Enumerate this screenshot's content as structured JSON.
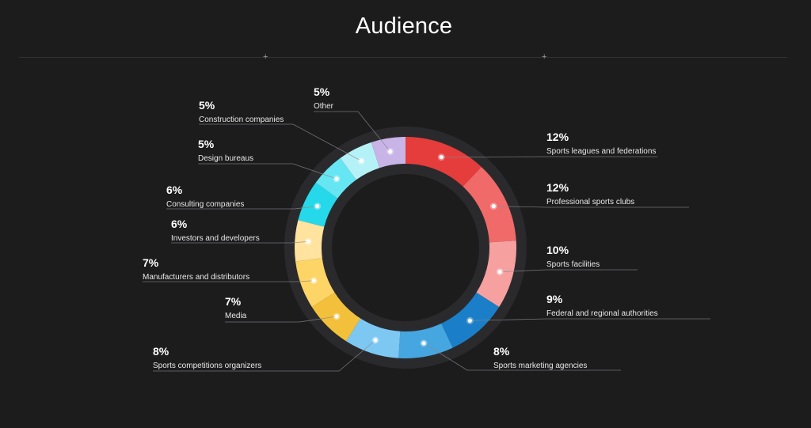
{
  "page": {
    "title": "Audience"
  },
  "colors": {
    "background": "#1c1c1d",
    "ring_track": "#2a2a2d",
    "leader_line": "#8a8a8c"
  },
  "chart_data": {
    "type": "pie",
    "variant": "donut",
    "title": "Audience",
    "unit": "%",
    "slices": [
      {
        "label": "Sports leagues and federations",
        "value": 12,
        "value_label": "12%",
        "color": "#e53c3c"
      },
      {
        "label": "Professional sports clubs",
        "value": 12,
        "value_label": "12%",
        "color": "#f06a6a"
      },
      {
        "label": "Sports facilities",
        "value": 10,
        "value_label": "10%",
        "color": "#f7a0a0"
      },
      {
        "label": "Federal and regional authorities",
        "value": 9,
        "value_label": "9%",
        "color": "#1a7fc8"
      },
      {
        "label": "Sports marketing agencies",
        "value": 8,
        "value_label": "8%",
        "color": "#45a6e0"
      },
      {
        "label": "Sports competitions organizers",
        "value": 8,
        "value_label": "8%",
        "color": "#7cc8f3"
      },
      {
        "label": "Media",
        "value": 7,
        "value_label": "7%",
        "color": "#f2c03a"
      },
      {
        "label": "Manufacturers and distributors",
        "value": 7,
        "value_label": "7%",
        "color": "#fdd466"
      },
      {
        "label": "Investors and developers",
        "value": 6,
        "value_label": "6%",
        "color": "#ffe39e"
      },
      {
        "label": "Consulting companies",
        "value": 6,
        "value_label": "6%",
        "color": "#25d9ea"
      },
      {
        "label": "Design bureaus",
        "value": 5,
        "value_label": "5%",
        "color": "#66e6f2"
      },
      {
        "label": "Construction companies",
        "value": 5,
        "value_label": "5%",
        "color": "#b5f2f8"
      },
      {
        "label": "Other",
        "value": 5,
        "value_label": "5%",
        "color": "#c8b4e6"
      }
    ]
  }
}
